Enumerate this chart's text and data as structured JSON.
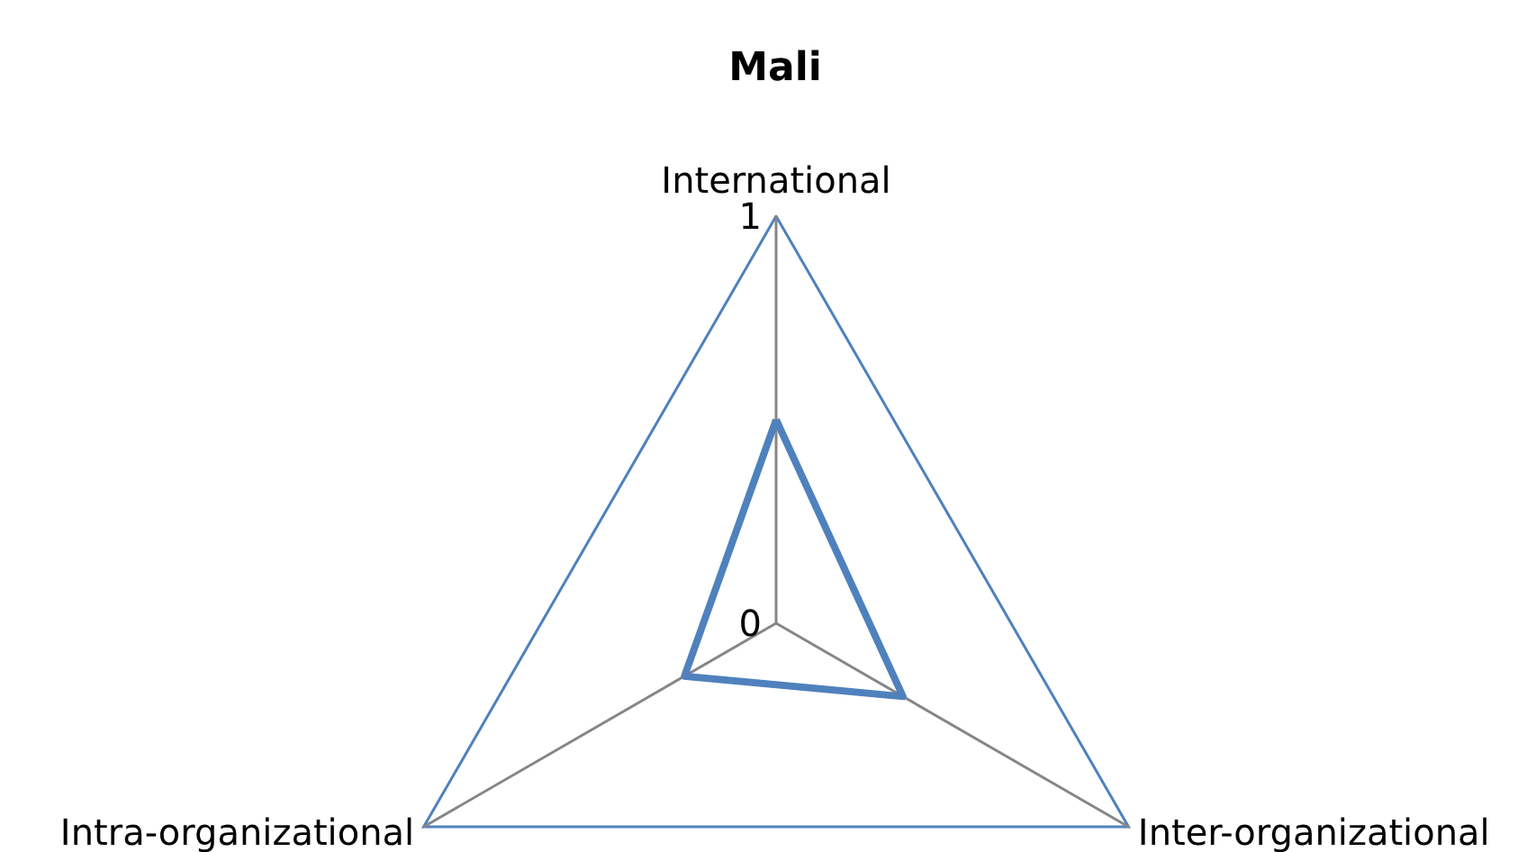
{
  "chart_data": {
    "type": "radar",
    "title": "Mali",
    "categories": [
      "International",
      "Inter-organizational",
      "Intra-organizational"
    ],
    "series": [
      {
        "color": "#4f81bd",
        "values": [
          0.5,
          0.36,
          0.26
        ]
      }
    ],
    "ylim": [
      0,
      1
    ],
    "yticks": [
      0,
      1
    ],
    "marker": "none",
    "grid": true
  }
}
